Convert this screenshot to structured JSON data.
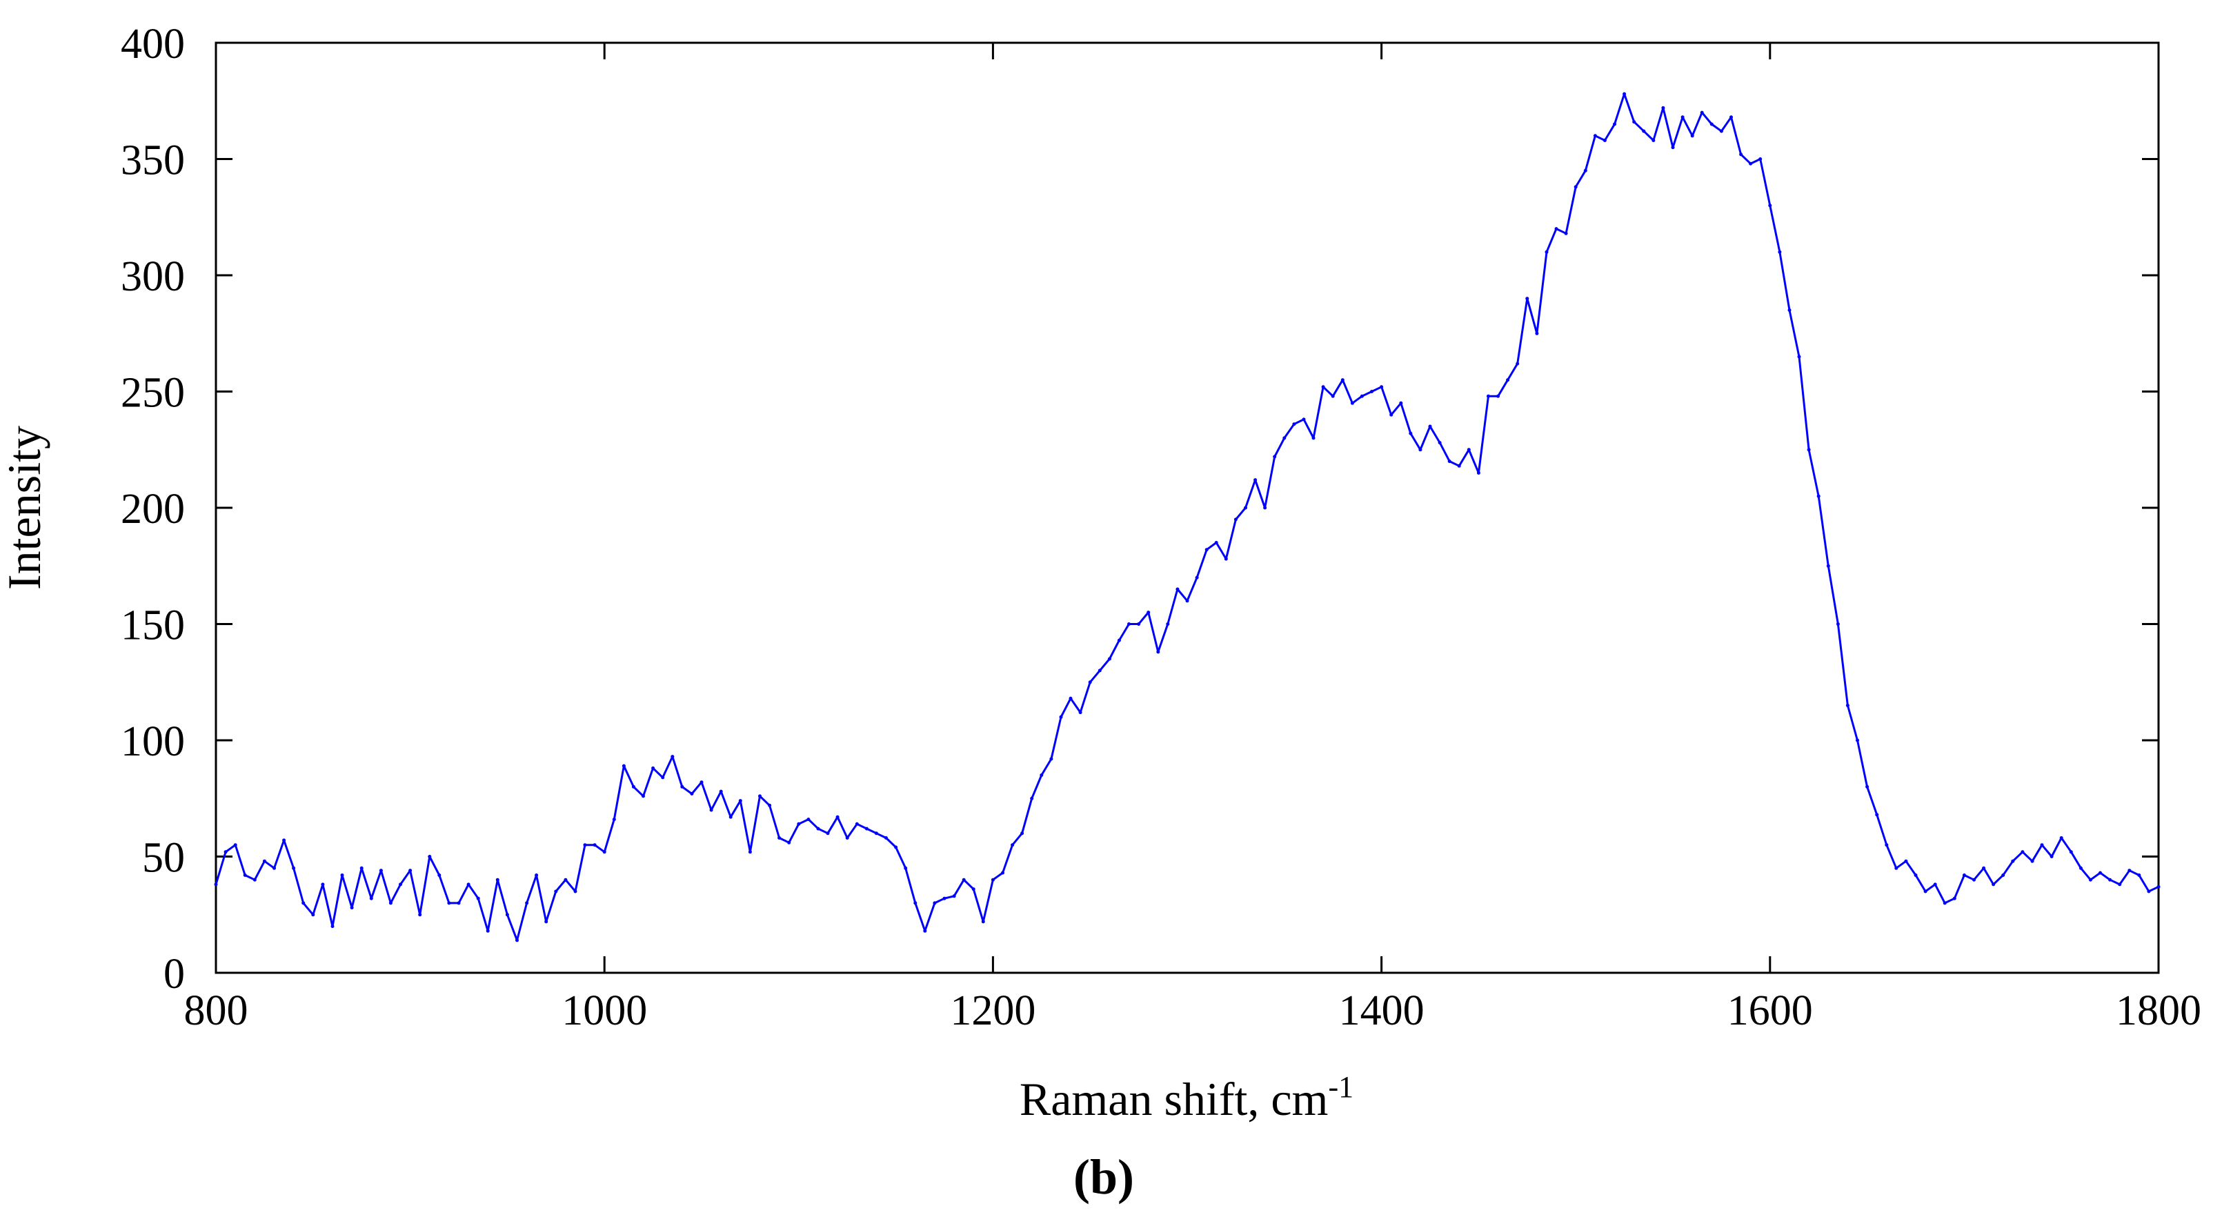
{
  "chart_data": {
    "type": "line",
    "title": "",
    "xlabel": "Raman shift, cm",
    "xlabel_superscript": "-1",
    "ylabel": "Intensity",
    "panel_label": "(b)",
    "xlim": [
      800,
      1800
    ],
    "ylim": [
      0,
      400
    ],
    "xticks": [
      800,
      1000,
      1200,
      1400,
      1600,
      1800
    ],
    "yticks": [
      0,
      50,
      100,
      150,
      200,
      250,
      300,
      350,
      400
    ],
    "grid": false,
    "legend": false,
    "series": [
      {
        "color": "#0000ff",
        "x": [
          800,
          805,
          810,
          815,
          820,
          825,
          830,
          835,
          840,
          845,
          850,
          855,
          860,
          865,
          870,
          875,
          880,
          885,
          890,
          895,
          900,
          905,
          910,
          915,
          920,
          925,
          930,
          935,
          940,
          945,
          950,
          955,
          960,
          965,
          970,
          975,
          980,
          985,
          990,
          995,
          1000,
          1005,
          1010,
          1015,
          1020,
          1025,
          1030,
          1035,
          1040,
          1045,
          1050,
          1055,
          1060,
          1065,
          1070,
          1075,
          1080,
          1085,
          1090,
          1095,
          1100,
          1105,
          1110,
          1115,
          1120,
          1125,
          1130,
          1135,
          1140,
          1145,
          1150,
          1155,
          1160,
          1165,
          1170,
          1175,
          1180,
          1185,
          1190,
          1195,
          1200,
          1205,
          1210,
          1215,
          1220,
          1225,
          1230,
          1235,
          1240,
          1245,
          1250,
          1255,
          1260,
          1265,
          1270,
          1275,
          1280,
          1285,
          1290,
          1295,
          1300,
          1305,
          1310,
          1315,
          1320,
          1325,
          1330,
          1335,
          1340,
          1345,
          1350,
          1355,
          1360,
          1365,
          1370,
          1375,
          1380,
          1385,
          1390,
          1395,
          1400,
          1405,
          1410,
          1415,
          1420,
          1425,
          1430,
          1435,
          1440,
          1445,
          1450,
          1455,
          1460,
          1465,
          1470,
          1475,
          1480,
          1485,
          1490,
          1495,
          1500,
          1505,
          1510,
          1515,
          1520,
          1525,
          1530,
          1535,
          1540,
          1545,
          1550,
          1555,
          1560,
          1565,
          1570,
          1575,
          1580,
          1585,
          1590,
          1595,
          1600,
          1605,
          1610,
          1615,
          1620,
          1625,
          1630,
          1635,
          1640,
          1645,
          1650,
          1655,
          1660,
          1665,
          1670,
          1675,
          1680,
          1685,
          1690,
          1695,
          1700,
          1705,
          1710,
          1715,
          1720,
          1725,
          1730,
          1735,
          1740,
          1745,
          1750,
          1755,
          1760,
          1765,
          1770,
          1775,
          1780,
          1785,
          1790,
          1795,
          1800
        ],
        "y": [
          38,
          52,
          55,
          42,
          40,
          48,
          45,
          57,
          45,
          30,
          25,
          38,
          20,
          42,
          28,
          45,
          32,
          44,
          30,
          38,
          44,
          25,
          50,
          42,
          30,
          30,
          38,
          32,
          18,
          40,
          25,
          14,
          30,
          42,
          22,
          35,
          40,
          35,
          55,
          55,
          52,
          66,
          89,
          80,
          76,
          88,
          84,
          93,
          80,
          77,
          82,
          70,
          78,
          67,
          74,
          52,
          76,
          72,
          58,
          56,
          64,
          66,
          62,
          60,
          67,
          58,
          64,
          62,
          60,
          58,
          54,
          45,
          30,
          18,
          30,
          32,
          33,
          40,
          36,
          22,
          40,
          43,
          55,
          60,
          75,
          85,
          92,
          110,
          118,
          112,
          125,
          130,
          135,
          143,
          150,
          150,
          155,
          138,
          150,
          165,
          160,
          170,
          182,
          185,
          178,
          195,
          200,
          212,
          200,
          222,
          230,
          236,
          238,
          230,
          252,
          248,
          255,
          245,
          248,
          250,
          252,
          240,
          245,
          232,
          225,
          235,
          228,
          220,
          218,
          225,
          215,
          248,
          248,
          255,
          262,
          290,
          275,
          310,
          320,
          318,
          338,
          345,
          360,
          358,
          365,
          378,
          366,
          362,
          358,
          372,
          355,
          368,
          360,
          370,
          365,
          362,
          368,
          352,
          348,
          350,
          330,
          310,
          285,
          265,
          225,
          205,
          175,
          150,
          115,
          100,
          80,
          68,
          55,
          45,
          48,
          42,
          35,
          38,
          30,
          32,
          42,
          40,
          45,
          38,
          42,
          48,
          52,
          48,
          55,
          50,
          58,
          52,
          45,
          40,
          43,
          40,
          38,
          44,
          42,
          35,
          37
        ]
      }
    ]
  }
}
